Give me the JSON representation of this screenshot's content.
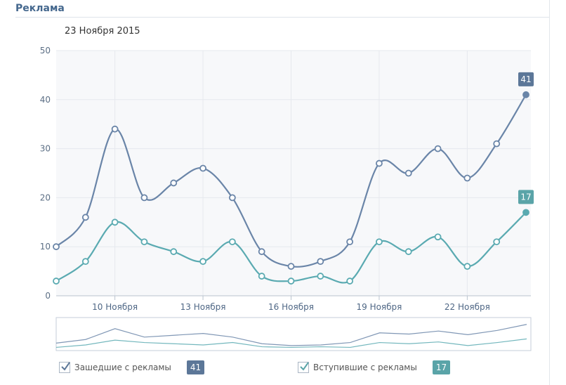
{
  "header": {
    "title": "Реклама"
  },
  "date_label": "23 Ноября 2015",
  "legend": [
    {
      "label": "Зашедшие с рекламы",
      "value": "41",
      "checked": true
    },
    {
      "label": "Вступившие с рекламы",
      "value": "17",
      "checked": true
    }
  ],
  "colors": {
    "series1": "#6a85a8",
    "series2": "#5aaab1",
    "badge1": "#5c7798",
    "badge2": "#5aa4a8"
  },
  "chart_data": {
    "type": "line",
    "x_tick_labels": [
      "10 Ноября",
      "13 Ноября",
      "16 Ноября",
      "19 Ноября",
      "22 Ноября"
    ],
    "x": [
      "8 Ноября",
      "9 Ноября",
      "10 Ноября",
      "11 Ноября",
      "12 Ноября",
      "13 Ноября",
      "14 Ноября",
      "15 Ноября",
      "16 Ноября",
      "17 Ноября",
      "18 Ноября",
      "19 Ноября",
      "20 Ноября",
      "21 Ноября",
      "22 Ноября",
      "23 Ноября",
      "24 Ноября"
    ],
    "series": [
      {
        "name": "Зашедшие с рекламы",
        "values": [
          10,
          16,
          34,
          20,
          23,
          26,
          20,
          9,
          6,
          7,
          11,
          27,
          25,
          30,
          24,
          31,
          41
        ],
        "end_label": "41"
      },
      {
        "name": "Вступившие с рекламы",
        "values": [
          3,
          7,
          15,
          11,
          9,
          7,
          11,
          4,
          3,
          4,
          3,
          11,
          9,
          12,
          6,
          11,
          17
        ],
        "end_label": "17"
      }
    ],
    "y_ticks": [
      "0",
      "10",
      "20",
      "30",
      "40",
      "50"
    ],
    "ylim": [
      0,
      50
    ],
    "grid": true
  }
}
